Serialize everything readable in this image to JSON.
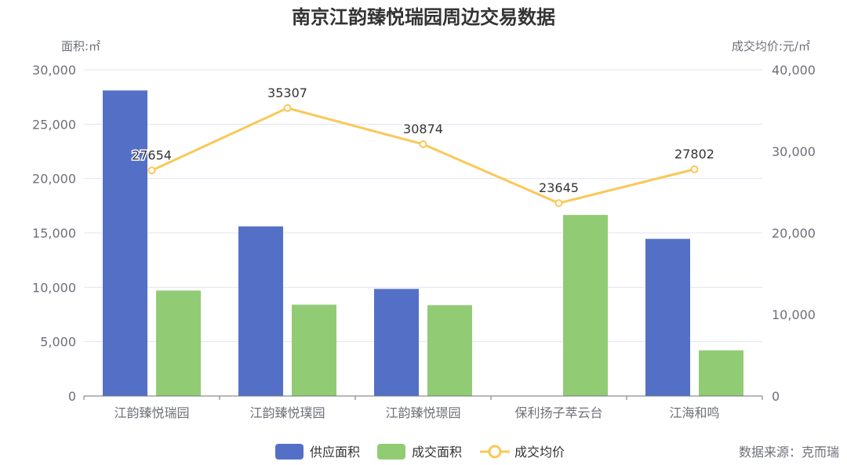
{
  "chart_data": {
    "type": "bar",
    "title": "南京江韵臻悦瑞园周边交易数据",
    "ylabel_left": "面积:㎡",
    "ylabel_right": "成交均价:元/㎡",
    "categories": [
      "江韵臻悦瑞园",
      "江韵臻悦璞园",
      "江韵臻悦璟园",
      "保利扬子萃云台",
      "江海和鸣"
    ],
    "ylim_left": [
      0,
      30000
    ],
    "ylim_right": [
      0,
      40000
    ],
    "yticks_left": [
      "0",
      "5,000",
      "10,000",
      "15,000",
      "20,000",
      "25,000",
      "30,000"
    ],
    "yticks_right": [
      "0",
      "10,000",
      "20,000",
      "30,000",
      "40,000"
    ],
    "grid": true,
    "legend_position": "bottom",
    "series": [
      {
        "name": "供应面积",
        "kind": "bar",
        "axis": "left",
        "color": "#5470c6",
        "values": [
          28100,
          15600,
          9850,
          0,
          14450
        ]
      },
      {
        "name": "成交面积",
        "kind": "bar",
        "axis": "left",
        "color": "#91cc75",
        "values": [
          9700,
          8400,
          8350,
          16650,
          4200
        ]
      },
      {
        "name": "成交均价",
        "kind": "line",
        "axis": "right",
        "color": "#fac858",
        "values": [
          27654,
          35307,
          30874,
          23645,
          27802
        ],
        "data_labels": [
          "27654",
          "35307",
          "30874",
          "23645",
          "27802"
        ]
      }
    ]
  },
  "source_text": "数据来源：克而瑞"
}
